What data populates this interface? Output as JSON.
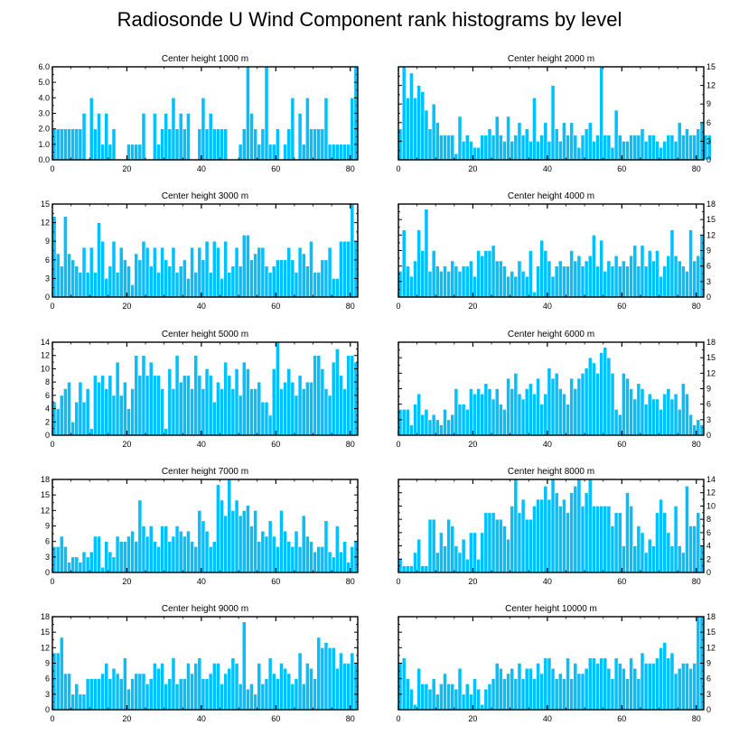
{
  "figure_title": "Radiosonde U Wind Component rank histograms by level",
  "colors": {
    "bar": "#00c0ff",
    "bar_edge": "#ffffff",
    "axis": "#000000"
  },
  "chart_data": [
    {
      "type": "bar",
      "title": "Center height 1000 m",
      "xlabel": "",
      "ylabel": "",
      "xlim": [
        0,
        82
      ],
      "ylim": [
        0,
        6
      ],
      "xticks": [
        0,
        20,
        40,
        60,
        80
      ],
      "xtick_labels": [
        "0",
        "20",
        "40",
        "60",
        "80"
      ],
      "yticks": [
        0,
        1,
        2,
        3,
        4,
        5,
        6
      ],
      "ytick_labels": [
        "0.0",
        "1.0",
        "2.0",
        "3.0",
        "4.0",
        "5.0",
        "6.0"
      ],
      "yaxis_side": "left",
      "values": [
        2,
        2,
        2,
        2,
        2,
        2,
        2,
        2,
        3,
        0,
        4,
        2,
        3,
        1,
        3,
        1,
        2,
        0,
        0,
        0,
        1,
        1,
        1,
        1,
        3,
        0,
        0,
        3,
        1,
        2,
        3,
        2,
        4,
        2,
        3,
        2,
        3,
        0,
        0,
        2,
        4,
        2,
        3,
        2,
        2,
        2,
        2,
        0,
        0,
        0,
        1,
        2,
        6,
        3,
        2,
        1,
        2,
        6,
        1,
        1,
        2,
        0,
        1,
        2,
        4,
        0,
        3,
        1,
        4,
        2,
        2,
        2,
        2,
        4,
        1,
        1,
        1,
        1,
        1,
        1,
        4,
        6
      ]
    },
    {
      "type": "bar",
      "title": "Center height 2000 m",
      "xlabel": "",
      "ylabel": "",
      "xlim": [
        0,
        82
      ],
      "ylim": [
        0,
        15
      ],
      "xticks": [
        0,
        20,
        40,
        60,
        80
      ],
      "xtick_labels": [
        "0",
        "20",
        "40",
        "60",
        "80"
      ],
      "yticks": [
        0,
        3,
        6,
        9,
        12,
        15
      ],
      "ytick_labels": [
        "0",
        "3",
        "6",
        "9",
        "12",
        "15"
      ],
      "yaxis_side": "right",
      "values": [
        5,
        15,
        10,
        14,
        10,
        12,
        11,
        8,
        5,
        9,
        6,
        4,
        4,
        4,
        4,
        1,
        7,
        3,
        4,
        3,
        2,
        2,
        4,
        4,
        5,
        4,
        7,
        4,
        3,
        7,
        3,
        4,
        6,
        4,
        5,
        3,
        10,
        3,
        4,
        6,
        3,
        12,
        5,
        3,
        6,
        4,
        6,
        4,
        2,
        4,
        5,
        6,
        3,
        4,
        15,
        4,
        4,
        2,
        8,
        4,
        3,
        3,
        4,
        4,
        4,
        5,
        3,
        4,
        4,
        3,
        2,
        3,
        4,
        4,
        3,
        6,
        4,
        5,
        4,
        4,
        5,
        6,
        4,
        4
      ]
    },
    {
      "type": "bar",
      "title": "Center height 3000 m",
      "xlabel": "",
      "ylabel": "",
      "xlim": [
        0,
        82
      ],
      "ylim": [
        0,
        15
      ],
      "xticks": [
        0,
        20,
        40,
        60,
        80
      ],
      "xtick_labels": [
        "0",
        "20",
        "40",
        "60",
        "80"
      ],
      "yticks": [
        0,
        3,
        6,
        9,
        12,
        15
      ],
      "ytick_labels": [
        "0",
        "3",
        "6",
        "9",
        "12",
        "15"
      ],
      "yaxis_side": "left",
      "values": [
        13,
        7,
        5,
        13,
        7,
        6,
        5,
        4,
        8,
        4,
        8,
        4,
        12,
        9,
        3,
        5,
        9,
        4,
        8,
        6,
        5,
        2,
        7,
        6,
        9,
        8,
        5,
        8,
        4,
        8,
        6,
        5,
        8,
        4,
        5,
        6,
        3,
        8,
        4,
        8,
        6,
        9,
        4,
        9,
        8,
        3,
        9,
        4,
        5,
        8,
        5,
        10,
        10,
        6,
        7,
        8,
        8,
        5,
        4,
        5,
        6,
        6,
        6,
        8,
        6,
        4,
        8,
        7,
        5,
        9,
        4,
        4,
        6,
        6,
        8,
        3,
        3,
        9,
        9,
        9,
        15,
        9
      ]
    },
    {
      "type": "bar",
      "title": "Center height 4000 m",
      "xlabel": "",
      "ylabel": "",
      "xlim": [
        0,
        82
      ],
      "ylim": [
        0,
        18
      ],
      "xticks": [
        0,
        20,
        40,
        60,
        80
      ],
      "xtick_labels": [
        "0",
        "20",
        "40",
        "60",
        "80"
      ],
      "yticks": [
        0,
        3,
        6,
        9,
        12,
        15,
        18
      ],
      "ytick_labels": [
        "0",
        "3",
        "6",
        "9",
        "12",
        "15",
        "18"
      ],
      "yaxis_side": "right",
      "values": [
        5,
        13,
        6,
        4,
        7,
        13,
        9,
        17,
        5,
        9,
        6,
        5,
        6,
        5,
        7,
        6,
        5,
        6,
        6,
        7,
        4,
        9,
        8,
        9,
        9,
        10,
        7,
        7,
        6,
        4,
        5,
        4,
        7,
        5,
        4,
        9,
        1,
        6,
        11,
        9,
        7,
        4,
        6,
        7,
        6,
        6,
        9,
        7,
        8,
        6,
        7,
        8,
        12,
        6,
        11,
        5,
        7,
        6,
        8,
        6,
        7,
        6,
        8,
        10,
        6,
        10,
        6,
        9,
        7,
        9,
        4,
        6,
        8,
        13,
        8,
        7,
        6,
        5,
        13,
        7,
        8,
        12
      ]
    },
    {
      "type": "bar",
      "title": "Center height 5000 m",
      "xlabel": "",
      "ylabel": "",
      "xlim": [
        0,
        82
      ],
      "ylim": [
        0,
        14
      ],
      "xticks": [
        0,
        20,
        40,
        60,
        80
      ],
      "xtick_labels": [
        "0",
        "20",
        "40",
        "60",
        "80"
      ],
      "yticks": [
        0,
        2,
        4,
        6,
        8,
        10,
        12,
        14
      ],
      "ytick_labels": [
        "0",
        "2",
        "4",
        "6",
        "8",
        "10",
        "12",
        "14"
      ],
      "yaxis_side": "left",
      "values": [
        5,
        4,
        6,
        7,
        8,
        2,
        5,
        8,
        5,
        7,
        1,
        9,
        8,
        9,
        7,
        9,
        6,
        11,
        6,
        8,
        4,
        7,
        12,
        9,
        12,
        9,
        11,
        9,
        9,
        7,
        1,
        10,
        7,
        12,
        8,
        9,
        9,
        7,
        12,
        9,
        7,
        10,
        9,
        5,
        8,
        7,
        11,
        9,
        7,
        10,
        6,
        11,
        10,
        7,
        7,
        8,
        5,
        5,
        3,
        10,
        14,
        7,
        8,
        10,
        8,
        6,
        9,
        7,
        8,
        8,
        12,
        12,
        10,
        7,
        6,
        11,
        13,
        9,
        7,
        12,
        12,
        11
      ]
    },
    {
      "type": "bar",
      "title": "Center height 6000 m",
      "xlabel": "",
      "ylabel": "",
      "xlim": [
        0,
        82
      ],
      "ylim": [
        0,
        18
      ],
      "xticks": [
        0,
        20,
        40,
        60,
        80
      ],
      "xtick_labels": [
        "0",
        "20",
        "40",
        "60",
        "80"
      ],
      "yticks": [
        0,
        3,
        6,
        9,
        12,
        15,
        18
      ],
      "ytick_labels": [
        "0",
        "3",
        "6",
        "9",
        "12",
        "15",
        "18"
      ],
      "yaxis_side": "right",
      "values": [
        5,
        5,
        5,
        2,
        6,
        8,
        4,
        5,
        3,
        4,
        3,
        2,
        5,
        3,
        4,
        9,
        6,
        6,
        5,
        9,
        8,
        9,
        8,
        10,
        9,
        7,
        9,
        6,
        5,
        11,
        9,
        12,
        8,
        7,
        9,
        10,
        8,
        11,
        6,
        8,
        13,
        11,
        12,
        9,
        8,
        6,
        11,
        9,
        11,
        12,
        13,
        15,
        14,
        12,
        16,
        17,
        15,
        12,
        5,
        4,
        12,
        11,
        9,
        7,
        10,
        9,
        6,
        8,
        7,
        7,
        5,
        8,
        9,
        7,
        8,
        5,
        10,
        8,
        4,
        2,
        3,
        2
      ]
    },
    {
      "type": "bar",
      "title": "Center height 7000 m",
      "xlabel": "",
      "ylabel": "",
      "xlim": [
        0,
        82
      ],
      "ylim": [
        0,
        18
      ],
      "xticks": [
        0,
        20,
        40,
        60,
        80
      ],
      "xtick_labels": [
        "0",
        "20",
        "40",
        "60",
        "80"
      ],
      "yticks": [
        0,
        3,
        6,
        9,
        12,
        15,
        18
      ],
      "ytick_labels": [
        "0",
        "3",
        "6",
        "9",
        "12",
        "15",
        "18"
      ],
      "yaxis_side": "left",
      "values": [
        5,
        5,
        7,
        5,
        2,
        3,
        3,
        2,
        4,
        3,
        4,
        7,
        7,
        1,
        6,
        4,
        3,
        7,
        6,
        6,
        7,
        8,
        6,
        14,
        9,
        7,
        9,
        6,
        5,
        9,
        9,
        6,
        7,
        9,
        8,
        7,
        8,
        6,
        5,
        12,
        10,
        8,
        5,
        6,
        17,
        14,
        11,
        18,
        12,
        14,
        11,
        12,
        13,
        9,
        12,
        6,
        8,
        7,
        10,
        7,
        5,
        12,
        8,
        6,
        5,
        8,
        5,
        11,
        7,
        6,
        4,
        5,
        5,
        10,
        4,
        3,
        9,
        4,
        6,
        2,
        5,
        6
      ]
    },
    {
      "type": "bar",
      "title": "Center height 8000 m",
      "xlabel": "",
      "ylabel": "",
      "xlim": [
        0,
        82
      ],
      "ylim": [
        0,
        14
      ],
      "xticks": [
        0,
        20,
        40,
        60,
        80
      ],
      "xtick_labels": [
        "0",
        "20",
        "40",
        "60",
        "80"
      ],
      "yticks": [
        0,
        2,
        4,
        6,
        8,
        10,
        12,
        14
      ],
      "ytick_labels": [
        "0",
        "2",
        "4",
        "6",
        "8",
        "10",
        "12",
        "14"
      ],
      "yaxis_side": "right",
      "values": [
        2,
        1,
        1,
        1,
        3,
        5,
        1,
        1,
        8,
        8,
        3,
        6,
        4,
        8,
        7,
        4,
        3,
        5,
        2,
        6,
        6,
        2,
        6,
        9,
        9,
        9,
        8,
        8,
        7,
        5,
        10,
        14,
        9,
        11,
        8,
        8,
        10,
        11,
        11,
        13,
        11,
        14,
        12,
        10,
        11,
        9,
        12,
        13,
        14,
        10,
        12,
        14,
        10,
        10,
        10,
        10,
        10,
        7,
        9,
        9,
        4,
        12,
        10,
        4,
        7,
        6,
        3,
        5,
        4,
        9,
        11,
        9,
        6,
        4,
        10,
        4,
        3,
        13,
        7,
        7,
        9,
        4
      ]
    },
    {
      "type": "bar",
      "title": "Center height 9000 m",
      "xlabel": "",
      "ylabel": "",
      "xlim": [
        0,
        82
      ],
      "ylim": [
        0,
        18
      ],
      "xticks": [
        0,
        20,
        40,
        60,
        80
      ],
      "xtick_labels": [
        "0",
        "20",
        "40",
        "60",
        "80"
      ],
      "yticks": [
        0,
        3,
        6,
        9,
        12,
        15,
        18
      ],
      "ytick_labels": [
        "0",
        "3",
        "6",
        "9",
        "12",
        "15",
        "18"
      ],
      "yaxis_side": "left",
      "values": [
        11,
        11,
        14,
        7,
        7,
        3,
        5,
        3,
        3,
        6,
        6,
        6,
        6,
        7,
        9,
        6,
        8,
        7,
        6,
        10,
        4,
        6,
        7,
        7,
        7,
        5,
        6,
        9,
        8,
        9,
        5,
        6,
        10,
        5,
        6,
        6,
        9,
        7,
        9,
        10,
        6,
        6,
        7,
        9,
        9,
        5,
        7,
        8,
        10,
        9,
        5,
        17,
        4,
        5,
        3,
        9,
        5,
        6,
        10,
        7,
        6,
        9,
        8,
        7,
        5,
        6,
        11,
        5,
        9,
        8,
        6,
        14,
        12,
        13,
        12,
        12,
        8,
        11,
        9,
        9,
        11,
        9
      ]
    },
    {
      "type": "bar",
      "title": "Center height 10000 m",
      "xlabel": "",
      "ylabel": "",
      "xlim": [
        0,
        82
      ],
      "ylim": [
        0,
        18
      ],
      "xticks": [
        0,
        20,
        40,
        60,
        80
      ],
      "xtick_labels": [
        "0",
        "20",
        "40",
        "60",
        "80"
      ],
      "yticks": [
        0,
        3,
        6,
        9,
        12,
        15,
        18
      ],
      "ytick_labels": [
        "0",
        "3",
        "6",
        "9",
        "12",
        "15",
        "18"
      ],
      "yaxis_side": "right",
      "values": [
        9,
        10,
        6,
        4,
        1,
        8,
        5,
        5,
        4,
        6,
        3,
        5,
        7,
        5,
        5,
        4,
        8,
        3,
        5,
        3,
        6,
        4,
        1,
        4,
        5,
        6,
        9,
        8,
        6,
        7,
        8,
        6,
        9,
        6,
        8,
        8,
        6,
        9,
        7,
        10,
        10,
        8,
        6,
        7,
        6,
        10,
        6,
        9,
        7,
        7,
        8,
        10,
        10,
        9,
        10,
        10,
        8,
        6,
        10,
        9,
        8,
        6,
        10,
        8,
        6,
        11,
        9,
        9,
        9,
        10,
        12,
        13,
        10,
        11,
        7,
        8,
        9,
        9,
        8,
        9,
        18,
        18
      ]
    }
  ]
}
